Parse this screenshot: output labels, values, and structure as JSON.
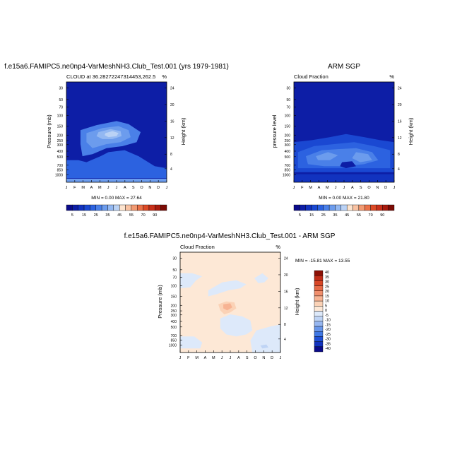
{
  "colors": {
    "main_scale": [
      "#0b0b8a",
      "#0d1ea6",
      "#1233bf",
      "#1a48d2",
      "#2c62e0",
      "#4a80e8",
      "#6c9ced",
      "#93b8f2",
      "#bad2f5",
      "#fde4cf",
      "#f9c2a2",
      "#f29a72",
      "#ea7148",
      "#dc4a26",
      "#c8301a",
      "#a71b0e",
      "#7c0b05"
    ],
    "diff_scale": [
      "#0b0b8a",
      "#1233bf",
      "#1f4fd6",
      "#3f77e4",
      "#6896ea",
      "#96b6f0",
      "#bfd4f5",
      "#dde9fa",
      "#fde8d6",
      "#fbd2b6",
      "#f7b393",
      "#f08e6c",
      "#e66a47",
      "#d84626",
      "#c02c18",
      "#8c0f05"
    ]
  },
  "chart_data": [
    {
      "type": "heatmap",
      "title": "f.e15a6.FAMIPC5.ne0np4-VarMeshNH3.Club_Test.001 (yrs 1979-1981)",
      "subtitle_left": "CLOUD at 36.28272247314453,262.5",
      "units": "%",
      "ylabel_left": "Pressure (mb)",
      "ylabel_right": "Height (km)",
      "min_max_text": "MIN =   0.00 MAX =  27.64",
      "x_ticks": [
        "J",
        "F",
        "M",
        "A",
        "M",
        "J",
        "J",
        "A",
        "S",
        "O",
        "N",
        "D",
        "J"
      ],
      "y_ticks_pressure": [
        "30",
        "50",
        "70",
        "100",
        "150",
        "200",
        "250",
        "300",
        "400",
        "500",
        "700",
        "850",
        "1000"
      ],
      "y_ticks_height": [
        "24",
        "20",
        "16",
        "12",
        "8",
        "4"
      ],
      "colorbar_labels": [
        "5",
        "15",
        "25",
        "35",
        "45",
        "55",
        "70",
        "90"
      ],
      "regions": [
        {
          "level": 5,
          "pts": [
            [
              0.14,
              0.48
            ],
            [
              0.3,
              0.43
            ],
            [
              0.5,
              0.39
            ],
            [
              0.62,
              0.42
            ],
            [
              0.74,
              0.5
            ],
            [
              0.7,
              0.6
            ],
            [
              0.56,
              0.64
            ],
            [
              0.4,
              0.66
            ],
            [
              0.26,
              0.72
            ],
            [
              0.16,
              0.74
            ],
            [
              0.14,
              0.62
            ]
          ]
        },
        {
          "level": 6,
          "pts": [
            [
              0.2,
              0.51
            ],
            [
              0.36,
              0.46
            ],
            [
              0.52,
              0.44
            ],
            [
              0.62,
              0.48
            ],
            [
              0.64,
              0.55
            ],
            [
              0.54,
              0.6
            ],
            [
              0.4,
              0.62
            ],
            [
              0.26,
              0.66
            ],
            [
              0.2,
              0.6
            ]
          ]
        },
        {
          "level": 7,
          "pts": [
            [
              0.32,
              0.5
            ],
            [
              0.44,
              0.47
            ],
            [
              0.54,
              0.49
            ],
            [
              0.55,
              0.54
            ],
            [
              0.46,
              0.57
            ],
            [
              0.36,
              0.57
            ],
            [
              0.3,
              0.54
            ]
          ]
        },
        {
          "level": 8,
          "pts": [
            [
              0.39,
              0.51
            ],
            [
              0.46,
              0.49
            ],
            [
              0.52,
              0.51
            ],
            [
              0.5,
              0.54
            ],
            [
              0.42,
              0.55
            ],
            [
              0.38,
              0.53
            ]
          ]
        },
        {
          "level": 4,
          "pts": [
            [
              0.0,
              0.78
            ],
            [
              0.12,
              0.78
            ],
            [
              0.2,
              0.8
            ],
            [
              0.34,
              0.74
            ],
            [
              0.42,
              0.7
            ],
            [
              0.58,
              0.68
            ],
            [
              0.72,
              0.74
            ],
            [
              0.88,
              0.84
            ],
            [
              1.0,
              0.86
            ],
            [
              1.0,
              0.96
            ],
            [
              0.0,
              0.96
            ]
          ]
        },
        {
          "level": 6,
          "pts": [
            [
              0.0,
              0.965
            ],
            [
              1.0,
              0.965
            ],
            [
              1.0,
              1.0
            ],
            [
              0.0,
              1.0
            ]
          ]
        }
      ],
      "base_level": 1,
      "band_level": 2
    },
    {
      "type": "heatmap",
      "title": "ARM SGP",
      "subtitle_left": "Cloud Fraction",
      "units": "%",
      "ylabel_left": "pressure level",
      "ylabel_right": "Height (km)",
      "min_max_text": "MIN =   0.00 MAX =  21.80",
      "x_ticks": [
        "J",
        "F",
        "M",
        "A",
        "M",
        "J",
        "J",
        "A",
        "S",
        "O",
        "N",
        "D",
        "J"
      ],
      "y_ticks_pressure": [
        "30",
        "50",
        "70",
        "100",
        "150",
        "200",
        "250",
        "300",
        "400",
        "500",
        "700",
        "850",
        "1000"
      ],
      "y_ticks_height": [
        "24",
        "20",
        "16",
        "12",
        "8",
        "4"
      ],
      "colorbar_labels": [
        "5",
        "15",
        "25",
        "35",
        "45",
        "55",
        "70",
        "90"
      ],
      "regions": [
        {
          "level": 3,
          "pts": [
            [
              0.0,
              0.6
            ],
            [
              0.18,
              0.58
            ],
            [
              0.36,
              0.55
            ],
            [
              0.52,
              0.52
            ],
            [
              0.7,
              0.55
            ],
            [
              0.86,
              0.58
            ],
            [
              1.0,
              0.6
            ],
            [
              1.0,
              0.9
            ],
            [
              0.0,
              0.9
            ]
          ]
        },
        {
          "level": 4,
          "pts": [
            [
              0.04,
              0.7
            ],
            [
              0.2,
              0.64
            ],
            [
              0.4,
              0.62
            ],
            [
              0.6,
              0.6
            ],
            [
              0.8,
              0.64
            ],
            [
              0.96,
              0.68
            ],
            [
              0.96,
              0.86
            ],
            [
              0.04,
              0.86
            ]
          ]
        },
        {
          "level": 5,
          "pts": [
            [
              0.12,
              0.74
            ],
            [
              0.28,
              0.68
            ],
            [
              0.44,
              0.67
            ],
            [
              0.62,
              0.66
            ],
            [
              0.78,
              0.7
            ],
            [
              0.84,
              0.78
            ],
            [
              0.7,
              0.82
            ],
            [
              0.5,
              0.84
            ],
            [
              0.3,
              0.84
            ],
            [
              0.14,
              0.82
            ]
          ]
        },
        {
          "level": 6,
          "pts": [
            [
              0.22,
              0.74
            ],
            [
              0.34,
              0.7
            ],
            [
              0.44,
              0.73
            ],
            [
              0.36,
              0.78
            ],
            [
              0.24,
              0.78
            ]
          ]
        },
        {
          "level": 6,
          "pts": [
            [
              0.62,
              0.7
            ],
            [
              0.74,
              0.72
            ],
            [
              0.78,
              0.78
            ],
            [
              0.66,
              0.8
            ],
            [
              0.58,
              0.76
            ]
          ]
        },
        {
          "level": 1,
          "pts": [
            [
              0.48,
              0.8
            ],
            [
              0.58,
              0.79
            ],
            [
              0.62,
              0.84
            ],
            [
              0.52,
              0.86
            ],
            [
              0.46,
              0.84
            ]
          ]
        },
        {
          "level": 2,
          "pts": [
            [
              0.0,
              0.92
            ],
            [
              1.0,
              0.92
            ],
            [
              1.0,
              1.0
            ],
            [
              0.0,
              1.0
            ]
          ]
        }
      ],
      "base_level": 1,
      "band_level": 2
    },
    {
      "type": "heatmap",
      "title": "f.e15a6.FAMIPC5.ne0np4-VarMeshNH3.Club_Test.001 - ARM SGP",
      "subtitle_left": "Cloud Fraction",
      "units": "%",
      "ylabel_left": "Pressure (mb)",
      "ylabel_right": "Height (km)",
      "min_max_text": "MIN = -15.81 MAX =  13.55",
      "x_ticks": [
        "J",
        "F",
        "M",
        "A",
        "M",
        "J",
        "J",
        "A",
        "S",
        "O",
        "N",
        "D",
        "J"
      ],
      "y_ticks_pressure": [
        "30",
        "50",
        "70",
        "100",
        "150",
        "200",
        "250",
        "300",
        "400",
        "500",
        "700",
        "850",
        "1000"
      ],
      "y_ticks_height": [
        "24",
        "20",
        "16",
        "12",
        "8",
        "4"
      ],
      "colorbar_labels": [
        "40",
        "35",
        "30",
        "25",
        "20",
        "15",
        "10",
        "5",
        "0",
        "-5",
        "-10",
        "-15",
        "-20",
        "-25",
        "-30",
        "-35",
        "-40"
      ],
      "regions": [
        {
          "level": 7,
          "pts": [
            [
              0.0,
              0.21
            ],
            [
              0.12,
              0.21
            ],
            [
              0.22,
              0.24
            ],
            [
              0.16,
              0.28
            ],
            [
              0.1,
              0.35
            ],
            [
              0.0,
              0.36
            ]
          ]
        },
        {
          "level": 7,
          "pts": [
            [
              0.28,
              0.38
            ],
            [
              0.42,
              0.3
            ],
            [
              0.56,
              0.28
            ],
            [
              0.66,
              0.32
            ],
            [
              0.6,
              0.36
            ],
            [
              0.48,
              0.38
            ],
            [
              0.36,
              0.42
            ],
            [
              0.28,
              0.44
            ]
          ]
        },
        {
          "level": 7,
          "pts": [
            [
              0.74,
              0.26
            ],
            [
              0.82,
              0.21
            ],
            [
              0.88,
              0.26
            ],
            [
              0.84,
              0.3
            ],
            [
              0.78,
              0.31
            ]
          ]
        },
        {
          "level": 7,
          "pts": [
            [
              0.4,
              0.66
            ],
            [
              0.5,
              0.62
            ],
            [
              0.62,
              0.64
            ],
            [
              0.7,
              0.68
            ],
            [
              0.72,
              0.78
            ],
            [
              0.66,
              0.82
            ],
            [
              0.56,
              0.84
            ],
            [
              0.46,
              0.82
            ],
            [
              0.4,
              0.76
            ]
          ]
        },
        {
          "level": 7,
          "pts": [
            [
              0.76,
              0.78
            ],
            [
              0.9,
              0.74
            ],
            [
              1.0,
              0.72
            ],
            [
              1.0,
              1.0
            ],
            [
              0.72,
              1.0
            ],
            [
              0.7,
              0.88
            ]
          ]
        },
        {
          "level": 7,
          "pts": [
            [
              0.0,
              0.84
            ],
            [
              0.14,
              0.84
            ],
            [
              0.22,
              0.9
            ],
            [
              0.2,
              0.96
            ],
            [
              0.0,
              0.96
            ]
          ]
        },
        {
          "level": 9,
          "pts": [
            [
              0.38,
              0.52
            ],
            [
              0.46,
              0.49
            ],
            [
              0.54,
              0.5
            ],
            [
              0.56,
              0.56
            ],
            [
              0.5,
              0.6
            ],
            [
              0.44,
              0.62
            ],
            [
              0.4,
              0.58
            ]
          ]
        },
        {
          "level": 10,
          "pts": [
            [
              0.43,
              0.52
            ],
            [
              0.5,
              0.51
            ],
            [
              0.52,
              0.55
            ],
            [
              0.47,
              0.58
            ],
            [
              0.43,
              0.56
            ]
          ]
        },
        {
          "level": 6,
          "pts": [
            [
              0.8,
              0.93
            ],
            [
              0.86,
              0.92
            ],
            [
              0.88,
              0.95
            ],
            [
              0.82,
              0.96
            ]
          ]
        }
      ],
      "base_level": 8,
      "band_level": 8
    }
  ]
}
